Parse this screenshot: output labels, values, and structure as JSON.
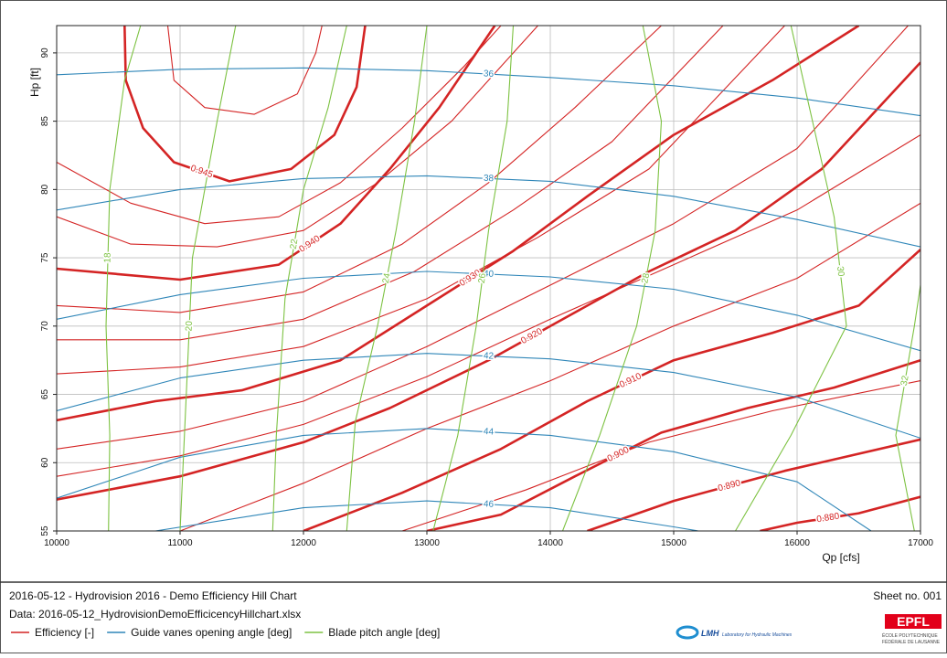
{
  "chart_data": {
    "type": "contour",
    "xlabel": "Qp [cfs]",
    "ylabel": "Hp [ft]",
    "xlim": [
      10000,
      17000
    ],
    "ylim": [
      55,
      92
    ],
    "xticks": [
      10000,
      11000,
      12000,
      13000,
      14000,
      15000,
      16000,
      17000
    ],
    "yticks": [
      55,
      60,
      65,
      70,
      75,
      80,
      85,
      90
    ],
    "grid": true,
    "series": [
      {
        "name": "Efficiency [-]",
        "color": "#d42424",
        "lines": [
          {
            "label": "0.945",
            "x": [
              10550,
              10560,
              10700,
              10950,
              11400,
              11900,
              12250,
              12430,
              12500
            ],
            "y": [
              92,
              88,
              84.5,
              82,
              80.6,
              81.5,
              84,
              87.5,
              92
            ]
          },
          {
            "label": "0.940",
            "x": [
              10000,
              11000,
              11800,
              12300,
              12700,
              13100,
              13550
            ],
            "y": [
              74.2,
              73.4,
              74.5,
              77.5,
              81.5,
              86,
              92
            ]
          },
          {
            "label": "0.930",
            "x": [
              10000,
              10800,
              11500,
              12300,
              13000,
              13700,
              14300,
              15000,
              15800,
              16500
            ],
            "y": [
              63.1,
              64.5,
              65.3,
              67.5,
              71.5,
              75.5,
              79.5,
              84,
              88,
              92
            ]
          },
          {
            "label": "0.920",
            "x": [
              10000,
              11000,
              12000,
              12700,
              13500,
              14200,
              14800,
              15500,
              16200,
              17000
            ],
            "y": [
              57.3,
              59,
              61.5,
              64,
              67.5,
              71,
              74,
              77,
              81.5,
              89.3
            ]
          },
          {
            "label": "0.910",
            "x": [
              12000,
              12800,
              13600,
              14300,
              15000,
              15800,
              16500,
              17000
            ],
            "y": [
              55,
              57.8,
              61,
              64.5,
              67.5,
              69.5,
              71.5,
              75.6
            ]
          },
          {
            "label": "0.900",
            "x": [
              13000,
              13600,
              14200,
              14900,
              15600,
              16300,
              17000
            ],
            "y": [
              55,
              56.2,
              59,
              62.2,
              64,
              65.5,
              67.5
            ]
          },
          {
            "label": "0.890",
            "x": [
              14300,
              15000,
              15900,
              17000
            ],
            "y": [
              55,
              57.2,
              59.4,
              61.7
            ]
          },
          {
            "label": "0.880",
            "x": [
              15700,
              16000,
              16500,
              17000
            ],
            "y": [
              55,
              55.6,
              56.3,
              57.5
            ]
          },
          {
            "x": [
              10000,
              10600,
              11200,
              11800,
              12300,
              12800,
              13300,
              13600
            ],
            "y": [
              82,
              79,
              77.5,
              78,
              80.5,
              84.5,
              89,
              92
            ]
          },
          {
            "x": [
              10000,
              10600,
              11300,
              12000,
              12600,
              13200,
              13900
            ],
            "y": [
              78,
              76,
              75.8,
              77,
              80.5,
              85,
              92
            ]
          },
          {
            "x": [
              10000,
              11000,
              12000,
              12800,
              13500,
              14200,
              14900
            ],
            "y": [
              71.5,
              71,
              72.5,
              76,
              80.5,
              86,
              92
            ]
          },
          {
            "x": [
              10000,
              11000,
              12000,
              12900,
              13700,
              14500,
              15400
            ],
            "y": [
              69,
              69,
              70.5,
              74,
              78.5,
              83.5,
              92
            ]
          },
          {
            "x": [
              10000,
              11000,
              12000,
              13000,
              13900,
              14800,
              15900
            ],
            "y": [
              66.5,
              67,
              68.5,
              72,
              76.5,
              81.5,
              92
            ]
          },
          {
            "x": [
              10000,
              11000,
              12000,
              13000,
              14000,
              15000,
              16000,
              16900
            ],
            "y": [
              61,
              62.3,
              64.5,
              68.5,
              73,
              77.5,
              83,
              92
            ]
          },
          {
            "x": [
              10000,
              11000,
              12000,
              13000,
              14000,
              15000,
              16000,
              17000
            ],
            "y": [
              59,
              60.5,
              62.8,
              66.3,
              70.5,
              74.5,
              78.5,
              84
            ]
          },
          {
            "x": [
              11000,
              12000,
              13000,
              14000,
              15000,
              16000,
              17000
            ],
            "y": [
              55,
              58.5,
              62.5,
              66,
              70,
              73.5,
              79
            ]
          },
          {
            "x": [
              12800,
              13800,
              14800,
              15800,
              17000
            ],
            "y": [
              55,
              58,
              61.5,
              63.8,
              66
            ]
          },
          {
            "x": [
              10900,
              10950,
              11200,
              11600,
              11950,
              12100,
              12150
            ],
            "y": [
              92,
              88,
              86,
              85.5,
              87,
              90,
              92
            ]
          }
        ]
      },
      {
        "name": "Guide vanes opening angle [deg]",
        "color": "#2f86b8",
        "lines": [
          {
            "label": "36",
            "x": [
              10000,
              11000,
              12000,
              13000,
              14000,
              15000,
              16000,
              17000
            ],
            "y": [
              88.4,
              88.8,
              88.9,
              88.7,
              88.2,
              87.6,
              86.7,
              85.4
            ]
          },
          {
            "label": "38",
            "x": [
              10000,
              11000,
              12000,
              13000,
              14000,
              15000,
              16000,
              17000
            ],
            "y": [
              78.5,
              80,
              80.8,
              81,
              80.6,
              79.5,
              77.8,
              75.8
            ]
          },
          {
            "label": "40",
            "x": [
              10000,
              11000,
              12000,
              13000,
              14000,
              15000,
              16000,
              17000
            ],
            "y": [
              70.5,
              72.3,
              73.5,
              74,
              73.6,
              72.7,
              70.8,
              68.2
            ]
          },
          {
            "label": "42",
            "x": [
              10000,
              11000,
              12000,
              13000,
              14000,
              15000,
              16000,
              17000
            ],
            "y": [
              63.8,
              66.2,
              67.5,
              68,
              67.6,
              66.6,
              64.8,
              61.8
            ]
          },
          {
            "label": "44",
            "x": [
              10000,
              11000,
              12000,
              13000,
              14000,
              15000,
              16000,
              16600
            ],
            "y": [
              57.4,
              60.4,
              62,
              62.5,
              62,
              60.8,
              58.6,
              55
            ]
          },
          {
            "label": "46",
            "x": [
              10800,
              12000,
              13000,
              14000,
              15000,
              15200
            ],
            "y": [
              55,
              56.7,
              57.2,
              56.7,
              55.3,
              55
            ]
          }
        ]
      },
      {
        "name": "Blade pitch angle [deg]",
        "color": "#7dc242",
        "lines": [
          {
            "label": "18",
            "x": [
              10420,
              10430,
              10400,
              10430,
              10550,
              10680
            ],
            "y": [
              55,
              62,
              70,
              80,
              88,
              92
            ]
          },
          {
            "label": "20",
            "x": [
              11000,
              11050,
              11100,
              11300,
              11450
            ],
            "y": [
              55,
              65,
              75,
              85,
              92
            ]
          },
          {
            "label": "22",
            "x": [
              11750,
              11780,
              11850,
              12000,
              12200,
              12350
            ],
            "y": [
              55,
              62,
              72,
              80,
              86,
              92
            ]
          },
          {
            "label": "24",
            "x": [
              12350,
              12420,
              12600,
              12750,
              12900,
              13000
            ],
            "y": [
              55,
              63,
              70,
              77,
              85,
              92
            ]
          },
          {
            "label": "26",
            "x": [
              13050,
              13250,
              13400,
              13500,
              13650,
              13700
            ],
            "y": [
              55,
              62,
              70,
              77,
              85,
              92
            ]
          },
          {
            "label": "28",
            "x": [
              14100,
              14400,
              14700,
              14850,
              14900,
              14750
            ],
            "y": [
              55,
              62,
              70,
              77,
              85,
              92
            ]
          },
          {
            "label": "30",
            "x": [
              15500,
              15950,
              16400,
              16300,
              16100,
              15950
            ],
            "y": [
              55,
              62,
              70,
              78,
              86,
              92
            ]
          },
          {
            "label": "32",
            "x": [
              16950,
              16800,
              16950,
              17000
            ],
            "y": [
              55,
              62,
              70,
              73
            ]
          }
        ]
      }
    ]
  },
  "footer": {
    "title": "2016-05-12 - Hydrovision 2016 - Demo Efficiency Hill Chart",
    "data_file": "Data: 2016-05-12_HydrovisionDemoEfficicencyHillchart.xlsx",
    "sheet": "Sheet no. 001",
    "lab_logo": "LMH",
    "lab_name": "Laboratory for Hydraulic Machines",
    "school_logo": "EPFL",
    "school_name_1": "ÉCOLE POLYTECHNIQUE",
    "school_name_2": "FÉDÉRALE DE LAUSANNE"
  }
}
